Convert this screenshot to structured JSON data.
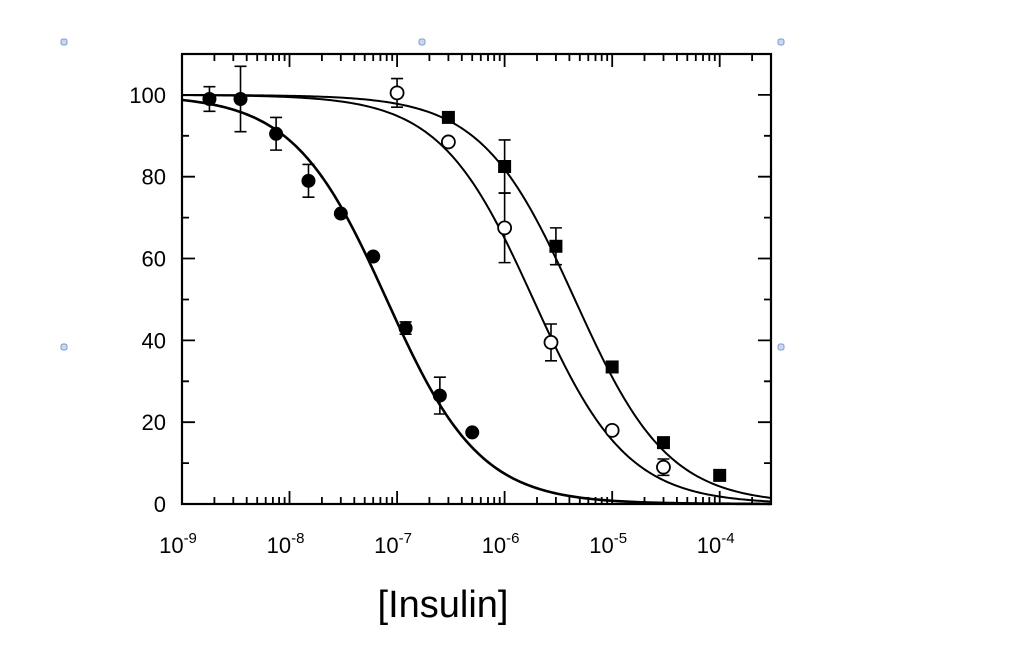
{
  "chart_data": {
    "type": "scatter",
    "title": "",
    "xlabel": "[Insulin]",
    "ylabel": "",
    "x_scale": "log",
    "xlim": [
      1e-09,
      0.0003
    ],
    "ylim": [
      0,
      110
    ],
    "x_ticks": [
      {
        "value": 1e-09,
        "base": "10",
        "exp": "-9"
      },
      {
        "value": 1e-08,
        "base": "10",
        "exp": "-8"
      },
      {
        "value": 1e-07,
        "base": "10",
        "exp": "-7"
      },
      {
        "value": 1e-06,
        "base": "10",
        "exp": "-6"
      },
      {
        "value": 1e-05,
        "base": "10",
        "exp": "-5"
      },
      {
        "value": 0.0001,
        "base": "10",
        "exp": "-4"
      }
    ],
    "y_ticks": [
      {
        "value": 0,
        "label": "0"
      },
      {
        "value": 20,
        "label": "20"
      },
      {
        "value": 40,
        "label": "40"
      },
      {
        "value": 60,
        "label": "60"
      },
      {
        "value": 80,
        "label": "80"
      },
      {
        "value": 100,
        "label": "100"
      }
    ],
    "grid": false,
    "legend": "none",
    "series": [
      {
        "marker": "filled-circle",
        "color": "#000000",
        "points": [
          {
            "x": 1.8e-09,
            "y": 99,
            "err": 3
          },
          {
            "x": 3.5e-09,
            "y": 99,
            "err": 8
          },
          {
            "x": 7.5e-09,
            "y": 90.5,
            "err": 4
          },
          {
            "x": 1.5e-08,
            "y": 79,
            "err": 4
          },
          {
            "x": 3e-08,
            "y": 71,
            "err": 0
          },
          {
            "x": 6e-08,
            "y": 60.5,
            "err": 0
          },
          {
            "x": 1.2e-07,
            "y": 43,
            "err": 1.5
          },
          {
            "x": 2.5e-07,
            "y": 26.5,
            "err": 4.5
          },
          {
            "x": 5e-07,
            "y": 17.5,
            "err": 0
          }
        ],
        "fit": {
          "top": 100,
          "bottom": 0,
          "ic50": 8e-08,
          "hill": 1
        }
      },
      {
        "marker": "open-circle",
        "color": "#000000",
        "points": [
          {
            "x": 1e-07,
            "y": 100.5,
            "err": 3.5
          },
          {
            "x": 3e-07,
            "y": 88.5,
            "err": 0
          },
          {
            "x": 1e-06,
            "y": 67.5,
            "err": 8.5
          },
          {
            "x": 2.7e-06,
            "y": 39.5,
            "err": 4.5
          },
          {
            "x": 1e-05,
            "y": 18,
            "err": 0
          },
          {
            "x": 3e-05,
            "y": 9,
            "err": 2
          }
        ],
        "fit": {
          "top": 100,
          "bottom": 0,
          "ic50": 1.85e-06,
          "hill": 1
        }
      },
      {
        "marker": "filled-square",
        "color": "#000000",
        "points": [
          {
            "x": 3e-07,
            "y": 94.5,
            "err": 0
          },
          {
            "x": 1e-06,
            "y": 82.5,
            "err": 6.5
          },
          {
            "x": 3e-06,
            "y": 63,
            "err": 4.5
          },
          {
            "x": 1e-05,
            "y": 33.5,
            "err": 0
          },
          {
            "x": 3e-05,
            "y": 15,
            "err": 0
          },
          {
            "x": 0.0001,
            "y": 7,
            "err": 0
          }
        ],
        "fit": {
          "top": 100,
          "bottom": 0,
          "ic50": 4.5e-06,
          "hill": 1
        }
      }
    ]
  }
}
